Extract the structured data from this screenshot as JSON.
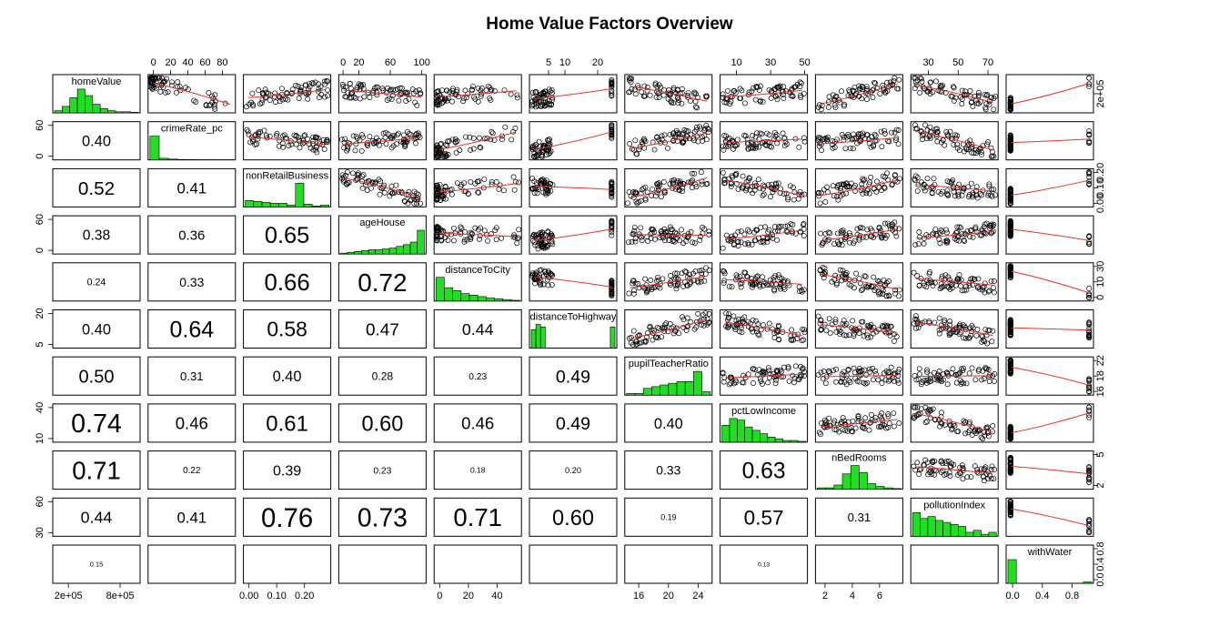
{
  "chart_data": {
    "type": "scatter",
    "title": "Home Value Factors Overview",
    "variables": [
      {
        "name": "homeValue",
        "ticks": [
          "2e+05",
          "8e+05"
        ],
        "tick_values": [
          200000,
          800000
        ],
        "range": [
          50000,
          1000000
        ]
      },
      {
        "name": "crimeRate_pc",
        "ticks": [
          "0",
          "20",
          "40",
          "60",
          "80"
        ],
        "tick_values": [
          0,
          20,
          40,
          60,
          80
        ],
        "range": [
          -3,
          92
        ]
      },
      {
        "name": "nonRetailBusiness",
        "ticks": [
          "0.00",
          "0.10",
          "0.20"
        ],
        "tick_values": [
          0,
          0.1,
          0.2
        ],
        "range": [
          -0.01,
          0.285
        ]
      },
      {
        "name": "ageHouse",
        "ticks": [
          "0",
          "20",
          "60",
          "100"
        ],
        "tick_values": [
          0,
          20,
          60,
          100
        ],
        "range": [
          -2,
          102
        ]
      },
      {
        "name": "distanceToCity",
        "ticks": [
          "0",
          "20",
          "40"
        ],
        "tick_values": [
          0,
          20,
          40
        ],
        "range": [
          -2,
          55
        ]
      },
      {
        "name": "distanceToHighway",
        "ticks": [
          "5",
          "10",
          "20"
        ],
        "tick_values": [
          5,
          10,
          20
        ],
        "range": [
          0,
          25
        ]
      },
      {
        "name": "pupilTeacherRatio",
        "ticks": [
          "16",
          "20",
          "24"
        ],
        "tick_values": [
          16,
          20,
          24
        ],
        "range": [
          14.5,
          25.5
        ]
      },
      {
        "name": "pctLowIncome",
        "ticks": [
          "10",
          "30",
          "50"
        ],
        "tick_values": [
          10,
          30,
          50
        ],
        "range": [
          2,
          50
        ]
      },
      {
        "name": "nBedRooms",
        "ticks": [
          "2",
          "4",
          "6"
        ],
        "tick_values": [
          2,
          4,
          6
        ],
        "range": [
          1.5,
          7.5
        ]
      },
      {
        "name": "pollutionIndex",
        "ticks": [
          "30",
          "50",
          "70"
        ],
        "tick_values": [
          30,
          50,
          70
        ],
        "range": [
          20,
          75
        ]
      },
      {
        "name": "withWater",
        "ticks": [
          "0.0",
          "0.4",
          "0.8"
        ],
        "tick_values": [
          0,
          0.4,
          0.8
        ],
        "range": [
          -0.05,
          1.05
        ]
      }
    ],
    "right_axis_ticks": {
      "0": [
        "2e+05"
      ],
      "2": [
        "0.00",
        "0.10",
        "0.20"
      ],
      "4": [
        "0",
        "10",
        "30"
      ],
      "6": [
        "16",
        "18",
        "22"
      ],
      "8": [
        "2",
        "5"
      ],
      "10": [
        "0.0",
        "0.4",
        "0.8"
      ]
    },
    "left_axis_ticks": {
      "1": [
        "0",
        "60"
      ],
      "3": [
        "0",
        "60"
      ],
      "5": [
        "5",
        "20"
      ],
      "7": [
        "10",
        "40"
      ],
      "9": [
        "30",
        "60"
      ]
    },
    "correlations": [
      {
        "row": 1,
        "col": 0,
        "value": "0.40"
      },
      {
        "row": 2,
        "col": 0,
        "value": "0.52"
      },
      {
        "row": 2,
        "col": 1,
        "value": "0.41"
      },
      {
        "row": 3,
        "col": 0,
        "value": "0.38"
      },
      {
        "row": 3,
        "col": 1,
        "value": "0.36"
      },
      {
        "row": 3,
        "col": 2,
        "value": "0.65"
      },
      {
        "row": 4,
        "col": 0,
        "value": "0.24"
      },
      {
        "row": 4,
        "col": 1,
        "value": "0.33"
      },
      {
        "row": 4,
        "col": 2,
        "value": "0.66"
      },
      {
        "row": 4,
        "col": 3,
        "value": "0.72"
      },
      {
        "row": 5,
        "col": 0,
        "value": "0.40"
      },
      {
        "row": 5,
        "col": 1,
        "value": "0.64"
      },
      {
        "row": 5,
        "col": 2,
        "value": "0.58"
      },
      {
        "row": 5,
        "col": 3,
        "value": "0.47"
      },
      {
        "row": 5,
        "col": 4,
        "value": "0.44"
      },
      {
        "row": 6,
        "col": 0,
        "value": "0.50"
      },
      {
        "row": 6,
        "col": 1,
        "value": "0.31"
      },
      {
        "row": 6,
        "col": 2,
        "value": "0.40"
      },
      {
        "row": 6,
        "col": 3,
        "value": "0.28"
      },
      {
        "row": 6,
        "col": 4,
        "value": "0.23"
      },
      {
        "row": 6,
        "col": 5,
        "value": "0.49"
      },
      {
        "row": 7,
        "col": 0,
        "value": "0.74"
      },
      {
        "row": 7,
        "col": 1,
        "value": "0.46"
      },
      {
        "row": 7,
        "col": 2,
        "value": "0.61"
      },
      {
        "row": 7,
        "col": 3,
        "value": "0.60"
      },
      {
        "row": 7,
        "col": 4,
        "value": "0.46"
      },
      {
        "row": 7,
        "col": 5,
        "value": "0.49"
      },
      {
        "row": 7,
        "col": 6,
        "value": "0.40"
      },
      {
        "row": 8,
        "col": 0,
        "value": "0.71"
      },
      {
        "row": 8,
        "col": 1,
        "value": "0.22"
      },
      {
        "row": 8,
        "col": 2,
        "value": "0.39"
      },
      {
        "row": 8,
        "col": 3,
        "value": "0.23"
      },
      {
        "row": 8,
        "col": 4,
        "value": "0.18"
      },
      {
        "row": 8,
        "col": 5,
        "value": "0.20"
      },
      {
        "row": 8,
        "col": 6,
        "value": "0.33"
      },
      {
        "row": 8,
        "col": 7,
        "value": "0.63"
      },
      {
        "row": 9,
        "col": 0,
        "value": "0.44"
      },
      {
        "row": 9,
        "col": 1,
        "value": "0.41"
      },
      {
        "row": 9,
        "col": 2,
        "value": "0.76"
      },
      {
        "row": 9,
        "col": 3,
        "value": "0.73"
      },
      {
        "row": 9,
        "col": 4,
        "value": "0.71"
      },
      {
        "row": 9,
        "col": 5,
        "value": "0.60"
      },
      {
        "row": 9,
        "col": 6,
        "value": "0.19"
      },
      {
        "row": 9,
        "col": 7,
        "value": "0.57"
      },
      {
        "row": 9,
        "col": 8,
        "value": "0.31"
      },
      {
        "row": 10,
        "col": 0,
        "value": "0.15"
      },
      {
        "row": 10,
        "col": 7,
        "value": "0.13"
      }
    ],
    "histograms": [
      {
        "var": 0,
        "counts": [
          2,
          6,
          14,
          22,
          16,
          8,
          4,
          2,
          1,
          1,
          0.5
        ]
      },
      {
        "var": 1,
        "counts": [
          30,
          2,
          1,
          0.5,
          0.3,
          0.2,
          0.2,
          0.1,
          0.1
        ]
      },
      {
        "var": 2,
        "counts": [
          7,
          6,
          5,
          4,
          4,
          2,
          26,
          3,
          1,
          2
        ]
      },
      {
        "var": 3,
        "counts": [
          1,
          2,
          3,
          4,
          5,
          5,
          6,
          7,
          9,
          11,
          14,
          28
        ]
      },
      {
        "var": 4,
        "counts": [
          16,
          9,
          7,
          5,
          4,
          3,
          2,
          1.5,
          1,
          0.5
        ]
      },
      {
        "var": 5,
        "counts": [
          7,
          9,
          8,
          0,
          0,
          0,
          0,
          0,
          0,
          0,
          0,
          0,
          0,
          0,
          0,
          0,
          0,
          8
        ]
      },
      {
        "var": 6,
        "counts": [
          1,
          1,
          4,
          5,
          6,
          7,
          8,
          8,
          14,
          2
        ]
      },
      {
        "var": 7,
        "counts": [
          10,
          14,
          13,
          9,
          7,
          5,
          3,
          2,
          1,
          1,
          0.5
        ]
      },
      {
        "var": 8,
        "counts": [
          1,
          1,
          3,
          11,
          17,
          12,
          4,
          2,
          1,
          0.5
        ]
      },
      {
        "var": 9,
        "counts": [
          12,
          9,
          10,
          8,
          7,
          6,
          5,
          2,
          3,
          1,
          2
        ]
      },
      {
        "var": 10,
        "counts": [
          26,
          0,
          0,
          0,
          0,
          0,
          0,
          0,
          0,
          1.5
        ]
      }
    ]
  }
}
